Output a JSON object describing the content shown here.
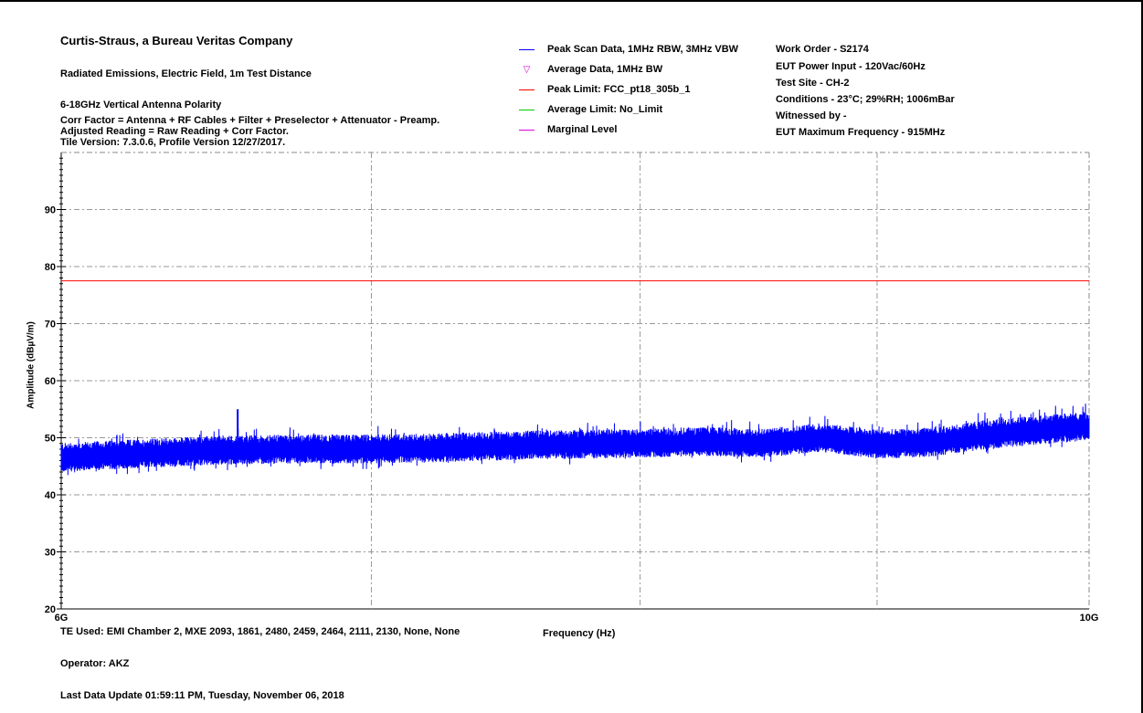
{
  "header": {
    "company": "Curtis-Straus, a Bureau Veritas Company",
    "test_type": "Radiated Emissions, Electric Field, 1m Test Distance",
    "polarity": "6-18GHz Vertical Antenna Polarity",
    "corr_factor": "Corr Factor = Antenna + RF Cables + Filter + Preselector + Attenuator - Preamp.",
    "adjusted_reading": "Adjusted Reading = Raw Reading + Corr Factor.",
    "tile_version": "Tile Version: 7.3.0.6, Profile Version 12/27/2017."
  },
  "legend": [
    {
      "label": "Peak Scan Data, 1MHz RBW, 3MHz VBW",
      "color": "#0000ff",
      "kind": "line"
    },
    {
      "label": "Average Data, 1MHz BW",
      "color": "#e000e0",
      "kind": "triangle"
    },
    {
      "label": "Peak Limit: FCC_pt18_305b_1",
      "color": "#ff0000",
      "kind": "line"
    },
    {
      "label": "Average Limit: No_Limit",
      "color": "#00cc00",
      "kind": "line"
    },
    {
      "label": "Marginal Level",
      "color": "#e000e0",
      "kind": "line"
    }
  ],
  "info": {
    "work_order": "Work Order - S2174",
    "power_input": "EUT Power Input - 120Vac/60Hz",
    "test_site": "Test Site - CH-2",
    "conditions": "Conditions - 23°C; 29%RH; 1006mBar",
    "witnessed": "Witnessed by -",
    "max_freq": "EUT Maximum Frequency - 915MHz"
  },
  "footer": {
    "te_used": "TE Used: EMI Chamber 2, MXE 2093, 1861, 2480, 2459, 2464, 2111, 2130, None, None",
    "operator": "Operator: AKZ",
    "last_update": "Last Data Update 01:59:11 PM, Tuesday, November 06, 2018"
  },
  "chart_data": {
    "type": "line",
    "xlabel": "Frequency (Hz)",
    "ylabel": "Amplitude (dBµV/m)",
    "xlim": [
      6000000000,
      10000000000
    ],
    "xscale": "log",
    "ylim": [
      20,
      100
    ],
    "x_tick_labels": [
      "6G",
      "10G"
    ],
    "y_ticks": [
      20,
      30,
      40,
      50,
      60,
      70,
      80,
      90
    ],
    "grid": true,
    "peak_limit": {
      "name": "Peak Limit: FCC_pt18_305b_1",
      "value": 77.5,
      "color": "#ff0000"
    },
    "series": [
      {
        "name": "Peak Scan Data, 1MHz RBW, 3MHz VBW",
        "color": "#0000ff",
        "x_ghz": [
          6.0,
          6.25,
          6.5,
          6.55,
          6.75,
          7.0,
          7.25,
          7.5,
          7.75,
          8.0,
          8.25,
          8.5,
          8.75,
          9.0,
          9.25,
          9.5,
          9.75,
          10.0
        ],
        "values": [
          46.5,
          47.2,
          47.8,
          47.8,
          48.0,
          48.0,
          48.2,
          48.6,
          48.8,
          49.0,
          49.3,
          49.0,
          50.0,
          48.8,
          49.2,
          50.5,
          51.3,
          52.0
        ],
        "spike": {
          "x_ghz": 6.55,
          "value": 55
        }
      }
    ]
  }
}
